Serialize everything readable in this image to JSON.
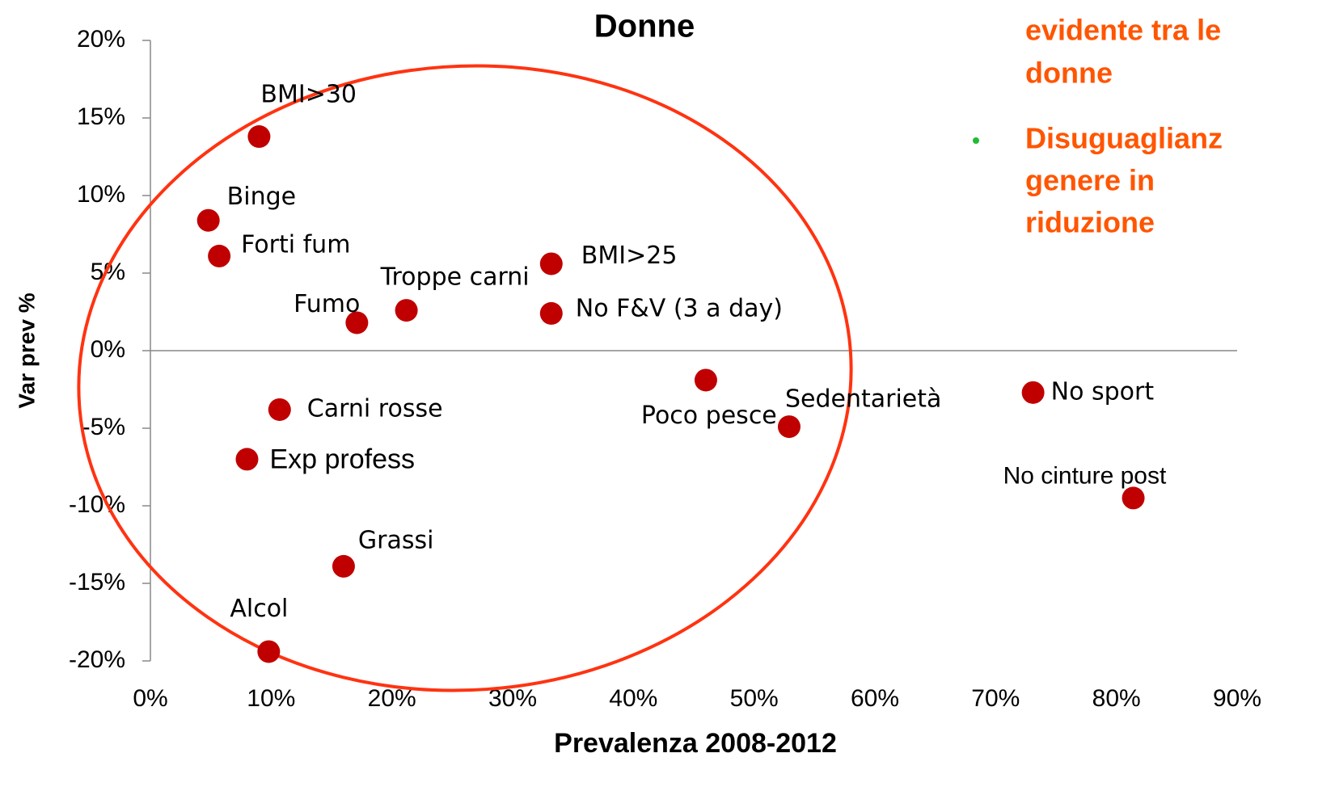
{
  "chart_data": {
    "type": "scatter",
    "title": "Donne",
    "xlabel": "Prevalenza 2008-2012",
    "ylabel": "Var prev %",
    "color": "#c00000",
    "x": [
      9.0,
      4.8,
      5.7,
      17.1,
      21.2,
      33.2,
      33.2,
      46.0,
      52.9,
      73.1,
      81.4,
      10.7,
      8.0,
      16.0,
      9.8
    ],
    "values": [
      13.8,
      8.4,
      6.1,
      1.8,
      2.6,
      5.6,
      2.4,
      -1.9,
      -4.9,
      -2.7,
      -9.5,
      -3.8,
      -7.0,
      -13.9,
      -19.4
    ],
    "labels": [
      "BMI>30",
      "Binge",
      "Forti fum",
      "Fumo",
      "Troppe  carni",
      "BMI>25",
      "No F&V (3 a day)",
      "Poco pesce",
      "Sedentarietà",
      "No sport",
      "No cinture post",
      "Carni rosse",
      "Exp profess",
      "Grassi",
      "Alcol"
    ],
    "xlim": [
      0,
      90
    ],
    "ylim": [
      -20,
      20
    ],
    "xticks": [
      {
        "value": 0,
        "label": "0%"
      },
      {
        "value": 10,
        "label": "10%"
      },
      {
        "value": 20,
        "label": "20%"
      },
      {
        "value": 30,
        "label": "30%"
      },
      {
        "value": 40,
        "label": "40%"
      },
      {
        "value": 50,
        "label": "50%"
      },
      {
        "value": 60,
        "label": "60%"
      },
      {
        "value": 70,
        "label": "70%"
      },
      {
        "value": 80,
        "label": "80%"
      },
      {
        "value": 90,
        "label": "90%"
      }
    ],
    "yticks": [
      {
        "value": -20,
        "label": "-20%"
      },
      {
        "value": -15,
        "label": "-15%"
      },
      {
        "value": -10,
        "label": "-10%"
      },
      {
        "value": -5,
        "label": "-5%"
      },
      {
        "value": 0,
        "label": "0%"
      },
      {
        "value": 5,
        "label": "5%"
      },
      {
        "value": 10,
        "label": "10%"
      },
      {
        "value": 15,
        "label": "15%"
      },
      {
        "value": 20,
        "label": "20%"
      }
    ],
    "annotations": [
      "evidente tra le",
      "donne",
      "Disuguaglianz",
      "genere in",
      "riduzione"
    ]
  }
}
